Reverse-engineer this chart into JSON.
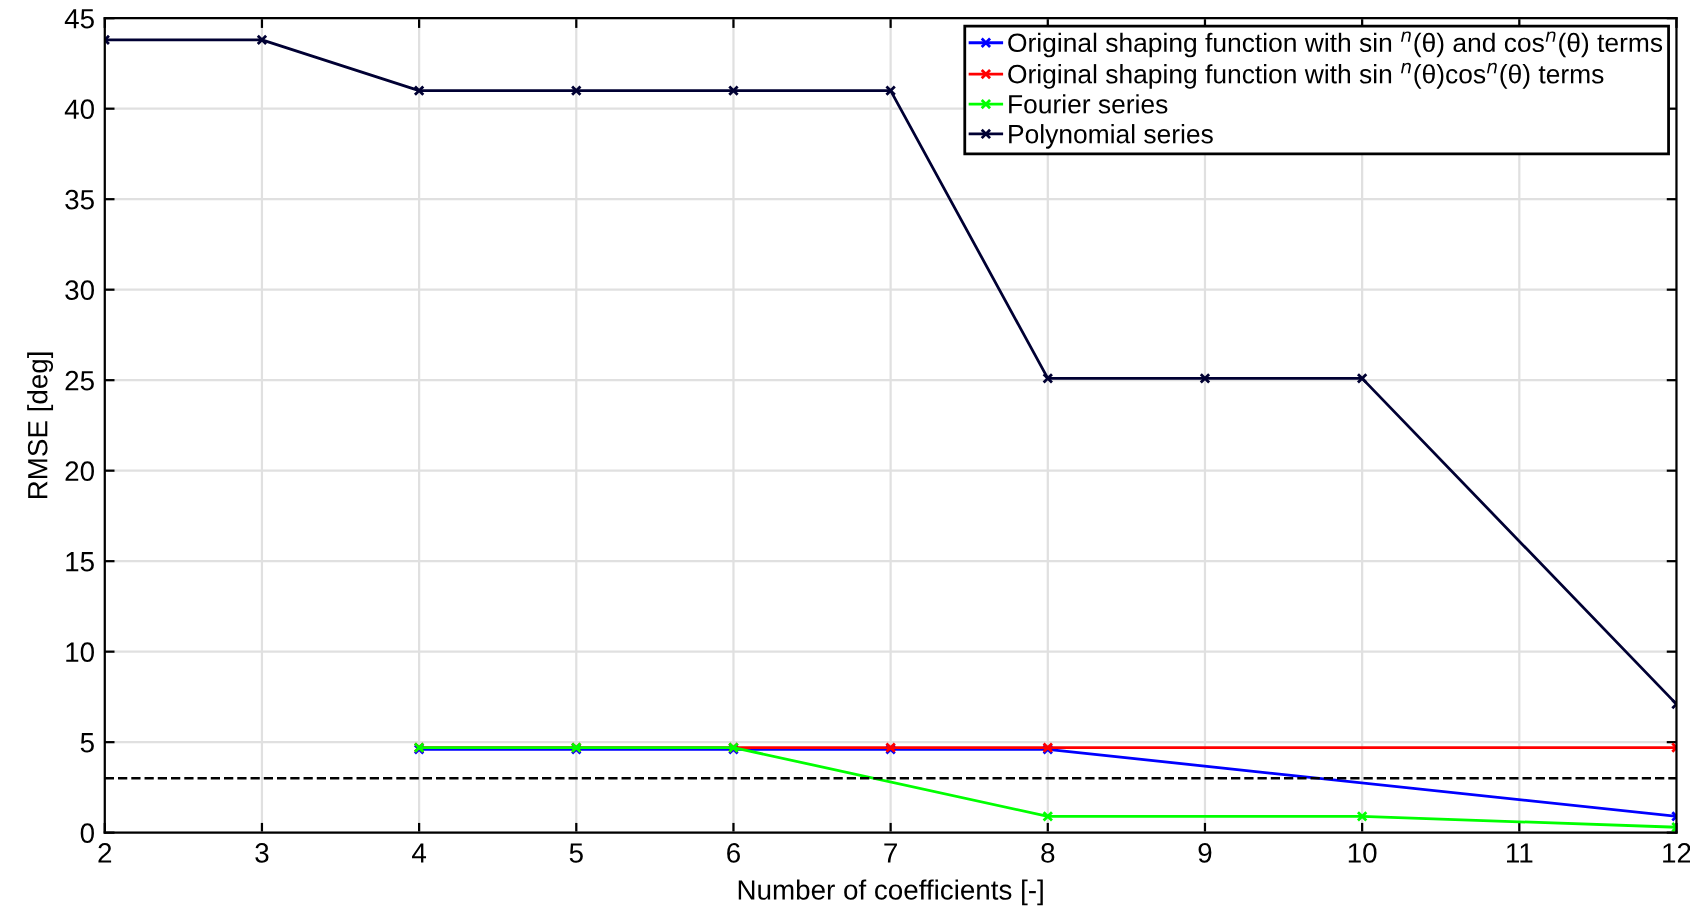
{
  "chart_data": {
    "type": "line",
    "xlabel": "Number of coefficients [-]",
    "ylabel": "RMSE [deg]",
    "xlim": [
      2,
      12
    ],
    "xticks": [
      2,
      3,
      4,
      5,
      6,
      7,
      8,
      9,
      10,
      11,
      12
    ],
    "ylim": [
      0,
      45
    ],
    "yticks": [
      0,
      5,
      10,
      15,
      20,
      25,
      30,
      35,
      40,
      45
    ],
    "grid": true,
    "legend": "top right",
    "marker": "cross",
    "line_style": "solid",
    "series": [
      {
        "name": "Original shaping function with sin $^{n}$(θ) and cos$^{n}$(θ) terms",
        "color": "#0000ff",
        "x": [
          4,
          5,
          6,
          7,
          8,
          12
        ],
        "values": [
          4.6,
          4.6,
          4.6,
          4.6,
          4.6,
          0.9
        ]
      },
      {
        "name": "Original shaping function with sin $^{n}$(θ)cos$^{n}$(θ) terms",
        "color": "#ff0000",
        "x": [
          4,
          5,
          6,
          7,
          8,
          12
        ],
        "values": [
          4.7,
          4.7,
          4.7,
          4.7,
          4.7,
          4.7
        ]
      },
      {
        "name": "Fourier series",
        "color": "#00ff00",
        "x": [
          4,
          5,
          6,
          8,
          10,
          12
        ],
        "values": [
          4.7,
          4.7,
          4.7,
          0.9,
          0.9,
          0.3
        ]
      },
      {
        "name": "Polynomial series",
        "color": "#000033",
        "x": [
          2,
          3,
          4,
          5,
          6,
          7,
          8,
          9,
          10,
          12
        ],
        "values": [
          43.8,
          43.8,
          41,
          41,
          41,
          41,
          25.1,
          25.1,
          25.1,
          7.1
        ]
      }
    ],
    "ref_lines": [
      {
        "axis": "y",
        "value": 3,
        "color": "#000000",
        "line_style": "dashed"
      }
    ]
  }
}
